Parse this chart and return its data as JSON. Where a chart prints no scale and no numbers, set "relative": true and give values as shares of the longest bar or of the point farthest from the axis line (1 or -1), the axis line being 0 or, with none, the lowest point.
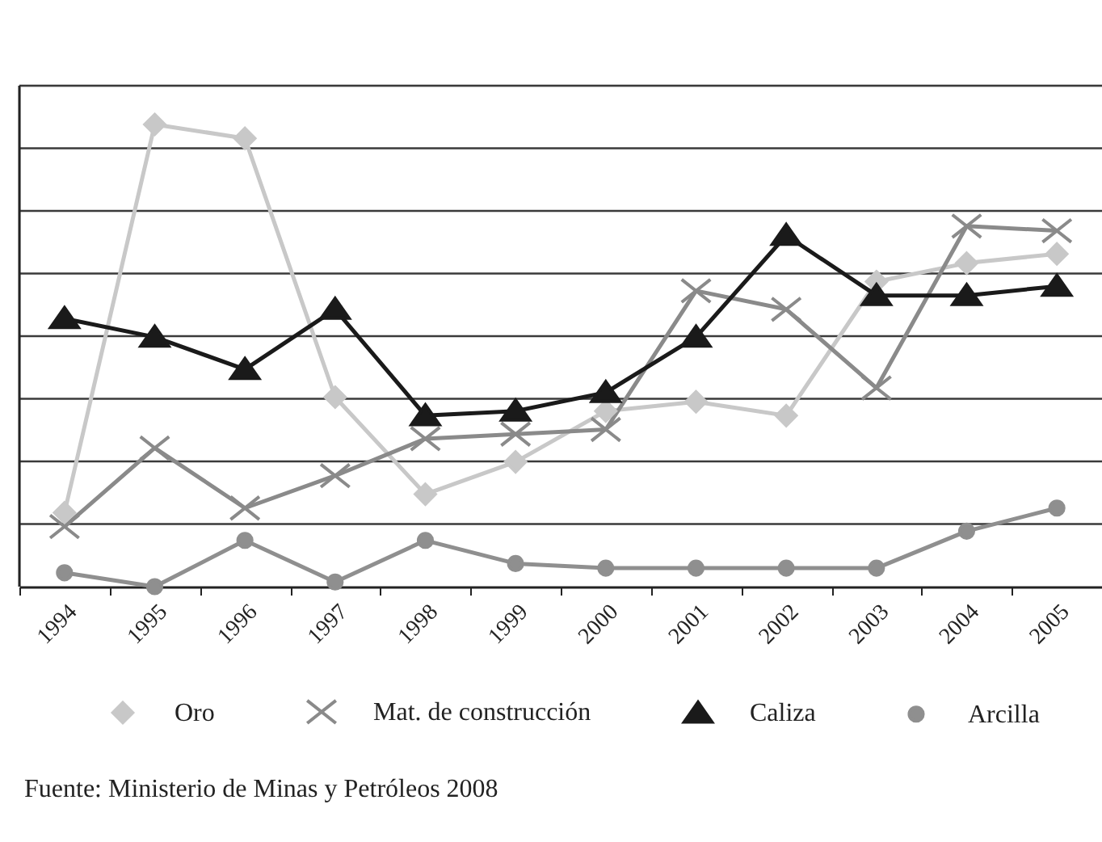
{
  "chart_data": {
    "type": "line",
    "relative": true,
    "grid": "y",
    "legend": "bottom",
    "categories": [
      "1994",
      "1995",
      "1996",
      "1997",
      "1998",
      "1999",
      "2000",
      "2001",
      "2002",
      "2003",
      "2004",
      "2005"
    ],
    "series": [
      {
        "name": "Oro",
        "color": "#c8c8c8",
        "marker": "diamond",
        "values": [
          0.16,
          1,
          0.97,
          0.41,
          0.2,
          0.27,
          0.38,
          0.4,
          0.37,
          0.66,
          0.7,
          0.72
        ]
      },
      {
        "name": "Mat. de construcción",
        "color": "#8a8a8a",
        "marker": "cross",
        "values": [
          0.13,
          0.3,
          0.17,
          0.24,
          0.32,
          0.33,
          0.34,
          0.64,
          0.6,
          0.43,
          0.78,
          0.77
        ]
      },
      {
        "name": "Caliza",
        "color": "#1a1a1a",
        "marker": "triangle",
        "values": [
          0.58,
          0.54,
          0.47,
          0.6,
          0.37,
          0.38,
          0.42,
          0.54,
          0.76,
          0.63,
          0.63,
          0.65
        ]
      },
      {
        "name": "Arcilla",
        "color": "#8f8f8f",
        "marker": "circle",
        "values": [
          0.03,
          0,
          0.1,
          0.01,
          0.1,
          0.05,
          0.04,
          0.04,
          0.04,
          0.04,
          0.12,
          0.17
        ]
      }
    ],
    "annotations": [
      "Fuente: Ministerio de Minas y Petróleos 2008"
    ]
  }
}
